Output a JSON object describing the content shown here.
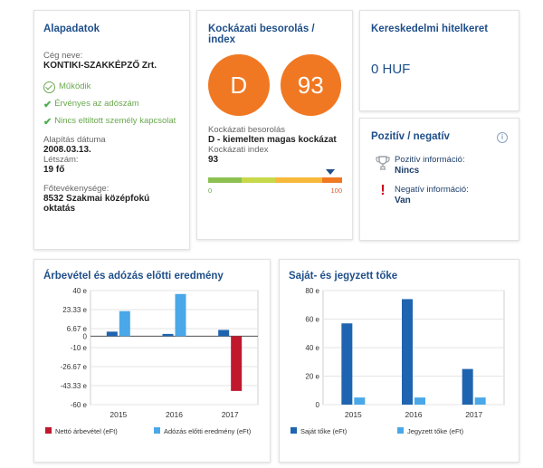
{
  "basic": {
    "title": "Alapadatok",
    "company_label": "Cég neve:",
    "company_name": "KONTIKI-SZAKKÉPZŐ Zrt.",
    "status1": "Működik",
    "status2": "Érvényes az adószám",
    "status3": "Nincs eltiltott személy kapcsolat",
    "founded_label": "Alapítás dátuma",
    "founded_value": "2008.03.13.",
    "headcount_label": "Létszám:",
    "headcount_value": "19 fő",
    "activity_label": "Főtevékenysége:",
    "activity_value": "8532 Szakmai középfokú oktatás"
  },
  "risk": {
    "title": "Kockázati besorolás / index",
    "grade": "D",
    "index": "93",
    "grade_label": "Kockázati besorolás",
    "grade_desc": "D - kiemelten magas kockázat",
    "index_label": "Kockázati index",
    "index_value": "93",
    "scale_min": "0",
    "scale_max": "100",
    "index_level_percent": 93,
    "bar_colors": [
      "#8cc152",
      "#c7d84a",
      "#f6b93b",
      "#f07823"
    ]
  },
  "credit": {
    "title": "Kereskedelmi hitelkeret",
    "value": "0 HUF"
  },
  "posneg": {
    "title": "Pozitív / negatív",
    "pos_label": "Pozitív információ:",
    "pos_value": "Nincs",
    "neg_label": "Negatív információ:",
    "neg_value": "Van"
  },
  "colors": {
    "accent": "#1f4f8a",
    "orange": "#f07823",
    "green": "#6aa84f",
    "red": "#d0021b"
  },
  "chart_data": [
    {
      "type": "bar",
      "title": "Árbevétel és adózás előtti eredmény",
      "categories": [
        "2015",
        "2016",
        "2017"
      ],
      "ylim": [
        -60,
        40
      ],
      "yticks": [
        "40 e",
        "23.33 e",
        "6.67 e",
        "0",
        "-10 e",
        "-26.67 e",
        "-43.33 e",
        "-60 e"
      ],
      "ytick_values": [
        40,
        23.33,
        6.67,
        0,
        -10,
        -26.67,
        -43.33,
        -60
      ],
      "series": [
        {
          "name": "Nettó árbevétel (eFt)",
          "values": [
            4,
            2,
            5.5
          ],
          "colors": [
            "#1f64b0",
            "#1f64b0",
            "#1f64b0"
          ]
        },
        {
          "name": "Adózás előtti eredmény (eFt)",
          "values": [
            22,
            37,
            -48
          ],
          "colors": [
            "#4aa8e8",
            "#4aa8e8",
            "#c0192e"
          ]
        }
      ],
      "legend_colors": [
        "#c0192e",
        "#4aa8e8"
      ]
    },
    {
      "type": "bar",
      "title": "Saját- és jegyzett tőke",
      "categories": [
        "2015",
        "2016",
        "2017"
      ],
      "ylim": [
        0,
        80
      ],
      "yticks": [
        "80 e",
        "60 e",
        "40 e",
        "20 e",
        "0"
      ],
      "ytick_values": [
        80,
        60,
        40,
        20,
        0
      ],
      "series": [
        {
          "name": "Saját tőke (eFt)",
          "values": [
            57,
            74,
            25
          ],
          "color": "#1f64b0"
        },
        {
          "name": "Jegyzett tőke (eFt)",
          "values": [
            5,
            5,
            5
          ],
          "color": "#4aa8e8"
        }
      ]
    }
  ]
}
